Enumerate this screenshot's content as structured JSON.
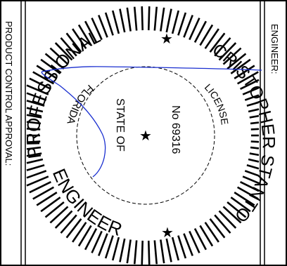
{
  "stamp": {
    "left_margin_text": "PRODUCT CONTROL APPROVAL:",
    "right_margin_text": "ENGINEER:",
    "outer_ring": {
      "top_left_text": "PROFESSIONAL",
      "bottom_text": "ENGINEER",
      "right_text": "CRISTOPHER STANTON"
    },
    "inner_ring": {
      "left_text": "FLORIDA",
      "right_text": "LICENSE"
    },
    "center": {
      "state_line1": "STATE OF",
      "license_no": "No 69316",
      "star_glyph": "★"
    },
    "colors": {
      "ink": "#000000",
      "signature": "#1a2fd0"
    },
    "signature_icon": "handwritten-signature"
  }
}
